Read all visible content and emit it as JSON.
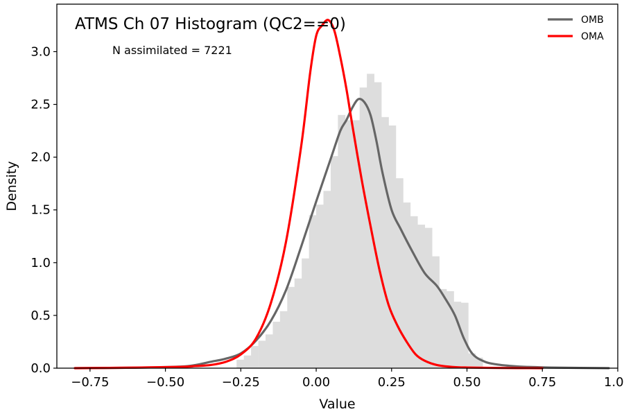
{
  "chart_data": {
    "type": "histogram",
    "title": "ATMS Ch 07 Histogram (QC2==0)",
    "annotation": "N assimilated = 7221",
    "xlabel": "Value",
    "ylabel": "Density",
    "xlim": [
      -0.86,
      1.0
    ],
    "ylim": [
      0,
      3.45
    ],
    "xticks": [
      -0.75,
      -0.5,
      -0.25,
      0.0,
      0.25,
      0.5,
      0.75,
      1.0
    ],
    "xtick_labels": [
      "−0.75",
      "−0.50",
      "−0.25",
      "0.00",
      "0.25",
      "0.50",
      "0.75",
      "1.00"
    ],
    "yticks": [
      0.0,
      0.5,
      1.0,
      1.5,
      2.0,
      2.5,
      3.0
    ],
    "ytick_labels": [
      "0.0",
      "0.5",
      "1.0",
      "1.5",
      "2.0",
      "2.5",
      "3.0"
    ],
    "legend_position": "top-right",
    "grid": false,
    "histogram": {
      "color": "#dddddd",
      "bin_width": 0.024,
      "bins": [
        [
          -0.264,
          0.08
        ],
        [
          -0.24,
          0.12
        ],
        [
          -0.216,
          0.21
        ],
        [
          -0.192,
          0.26
        ],
        [
          -0.168,
          0.32
        ],
        [
          -0.144,
          0.44
        ],
        [
          -0.12,
          0.54
        ],
        [
          -0.096,
          0.77
        ],
        [
          -0.072,
          0.85
        ],
        [
          -0.048,
          1.04
        ],
        [
          -0.024,
          1.45
        ],
        [
          0.0,
          1.55
        ],
        [
          0.024,
          1.68
        ],
        [
          0.048,
          2.01
        ],
        [
          0.072,
          2.4
        ],
        [
          0.096,
          2.35
        ],
        [
          0.12,
          2.35
        ],
        [
          0.144,
          2.66
        ],
        [
          0.168,
          2.79
        ],
        [
          0.192,
          2.71
        ],
        [
          0.216,
          2.38
        ],
        [
          0.24,
          2.3
        ],
        [
          0.264,
          1.8
        ],
        [
          0.288,
          1.57
        ],
        [
          0.312,
          1.44
        ],
        [
          0.336,
          1.36
        ],
        [
          0.36,
          1.33
        ],
        [
          0.384,
          1.06
        ],
        [
          0.408,
          0.75
        ],
        [
          0.432,
          0.73
        ],
        [
          0.456,
          0.63
        ],
        [
          0.48,
          0.62
        ],
        [
          0.504,
          0.14
        ],
        [
          0.528,
          0.1
        ]
      ]
    },
    "series": [
      {
        "name": "OMB",
        "color": "#666666",
        "x": [
          -0.8,
          -0.6,
          -0.45,
          -0.4,
          -0.35,
          -0.3,
          -0.25,
          -0.2,
          -0.15,
          -0.1,
          -0.05,
          0.0,
          0.05,
          0.08,
          0.1,
          0.12,
          0.14,
          0.16,
          0.18,
          0.2,
          0.22,
          0.25,
          0.28,
          0.32,
          0.36,
          0.4,
          0.43,
          0.46,
          0.49,
          0.52,
          0.56,
          0.6,
          0.65,
          0.7,
          0.8,
          0.97
        ],
        "y": [
          0.0,
          0.005,
          0.015,
          0.03,
          0.06,
          0.09,
          0.14,
          0.26,
          0.45,
          0.74,
          1.15,
          1.58,
          2.0,
          2.25,
          2.35,
          2.47,
          2.55,
          2.52,
          2.4,
          2.15,
          1.85,
          1.5,
          1.32,
          1.1,
          0.9,
          0.78,
          0.65,
          0.5,
          0.28,
          0.13,
          0.06,
          0.035,
          0.02,
          0.012,
          0.005,
          0.0
        ]
      },
      {
        "name": "OMA",
        "color": "#ff0000",
        "x": [
          -0.8,
          -0.6,
          -0.45,
          -0.4,
          -0.35,
          -0.3,
          -0.25,
          -0.2,
          -0.15,
          -0.1,
          -0.05,
          -0.02,
          0.0,
          0.02,
          0.04,
          0.06,
          0.08,
          0.1,
          0.12,
          0.15,
          0.18,
          0.21,
          0.24,
          0.27,
          0.3,
          0.33,
          0.36,
          0.4,
          0.45,
          0.5,
          0.6,
          0.75
        ],
        "y": [
          0.0,
          0.005,
          0.012,
          0.02,
          0.03,
          0.06,
          0.13,
          0.28,
          0.62,
          1.2,
          2.1,
          2.8,
          3.15,
          3.25,
          3.3,
          3.2,
          2.95,
          2.65,
          2.3,
          1.8,
          1.35,
          0.93,
          0.6,
          0.4,
          0.25,
          0.13,
          0.07,
          0.03,
          0.012,
          0.006,
          0.002,
          0.0
        ]
      }
    ]
  }
}
